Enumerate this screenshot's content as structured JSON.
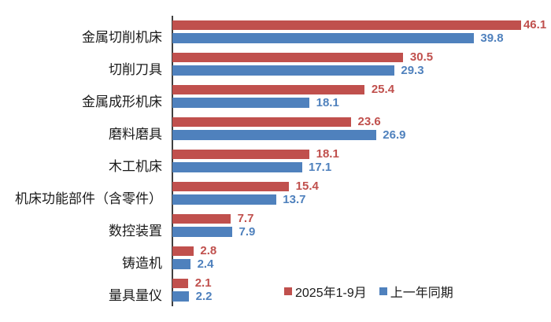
{
  "chart_data": {
    "type": "bar",
    "orientation": "horizontal",
    "title": "",
    "xlabel": "",
    "ylabel": "",
    "xlim": [
      0,
      50
    ],
    "grid": false,
    "value_labels": true,
    "legend_position": "bottom-inside",
    "background_color": "#FFFFFF",
    "axis_line_color": "#404040",
    "categories": [
      "金属切削机床",
      "切削刀具",
      "金属成形机床",
      "磨料磨具",
      "木工机床",
      "机床功能部件（含零件）",
      "数控装置",
      "铸造机",
      "量具量仪"
    ],
    "series": [
      {
        "name": "2025年1-9月",
        "color": "#C0504D",
        "values": [
          46.1,
          30.5,
          25.4,
          23.6,
          18.1,
          15.4,
          7.7,
          2.8,
          2.1
        ]
      },
      {
        "name": "上一年同期",
        "color": "#4F81BD",
        "values": [
          39.8,
          29.3,
          18.1,
          26.9,
          17.1,
          13.7,
          7.9,
          2.4,
          2.2
        ]
      }
    ]
  }
}
